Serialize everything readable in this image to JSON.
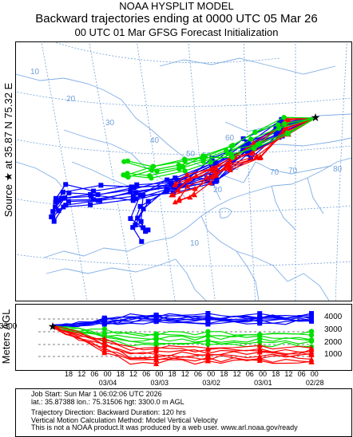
{
  "header": {
    "line1": "NOAA HYSPLIT MODEL",
    "line2": "Backward trajectories ending at 0000 UTC 05 Mar 26",
    "line3": "00 UTC 01 Mar    GFSG  Forecast Initialization"
  },
  "side_label": "Source ★ at    35.87 N    75.32 E",
  "source": {
    "lat": 35.87,
    "lon": 75.32,
    "symbol": "★"
  },
  "map": {
    "lat_labels": [
      "10",
      "20",
      "30",
      "40",
      "50",
      "60",
      "70",
      "80",
      "10",
      "20",
      "30",
      "40",
      "50",
      "60",
      "70"
    ],
    "source_marker": "star-icon"
  },
  "vertical": {
    "axis_label": "Meters AGL",
    "source_height_label": "3300",
    "right_ticks": [
      "4000",
      "3000",
      "2000",
      "1000"
    ],
    "time_ticks": [
      "18",
      "12",
      "06",
      "00",
      "18",
      "12",
      "06",
      "00",
      "18",
      "12",
      "06",
      "00",
      "18",
      "12",
      "06",
      "00",
      "18",
      "12",
      "06",
      "00"
    ],
    "date_labels": [
      "03/04",
      "03/03",
      "03/02",
      "03/01",
      "02/28"
    ]
  },
  "colors": {
    "red": "#ff0000",
    "blue": "#0000ff",
    "green": "#00e000"
  },
  "info": {
    "line1": "Job Start: Sun Mar  1 06:02:06 UTC 2026",
    "line2": "lat.: 35.87388   lon.: 75.31506    hgt: 3300.0 m AGL",
    "line3": "Trajectory Direction: Backward        Duration: 120 hrs",
    "line4": "Vertical Motion Calculation Method: Model Vertical Velocity",
    "line5": "This is not a NOAA product.It was produced by a web user. www.arl.noaa.gov/ready"
  }
}
